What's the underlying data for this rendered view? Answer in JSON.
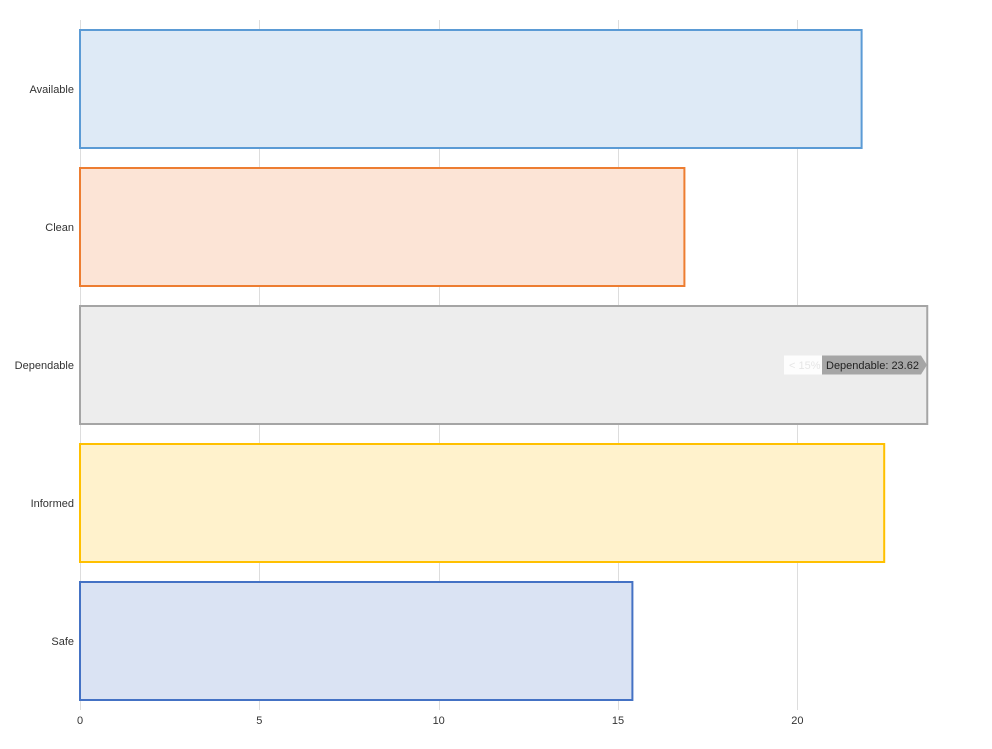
{
  "chart_data": {
    "type": "bar",
    "orientation": "horizontal",
    "categories": [
      "Available",
      "Clean",
      "Dependable",
      "Informed",
      "Safe"
    ],
    "values": [
      21.79,
      16.85,
      23.62,
      22.42,
      15.4
    ],
    "colors": {
      "stroke": [
        "#5b9bd5",
        "#ed7d31",
        "#a5a5a5",
        "#ffc000",
        "#4472c4"
      ],
      "fill": [
        "#deeaf6",
        "#fce4d6",
        "#ededed",
        "#fff2cc",
        "#dae3f3"
      ]
    },
    "x_ticks": [
      "0",
      "5",
      "10",
      "15",
      "20"
    ],
    "xlim": [
      0,
      23.62
    ],
    "grid": true,
    "legend": "none",
    "tooltip": {
      "category_index": 2,
      "ghost_text": "< 15%",
      "text": "Dependable: 23.62"
    }
  }
}
